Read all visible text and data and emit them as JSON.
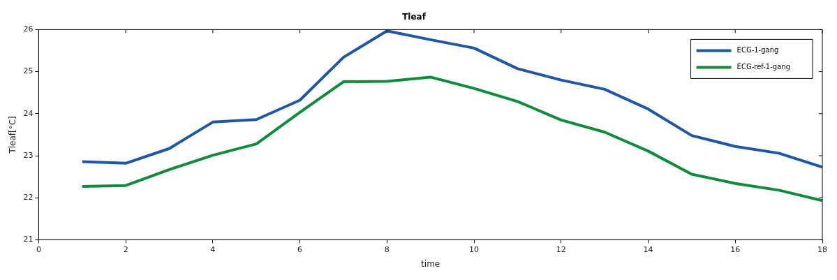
{
  "chart_data": {
    "type": "line",
    "title": "Tleaf",
    "xlabel": "time",
    "ylabel": "Tleaf[°C]",
    "x": [
      1,
      2,
      3,
      4,
      5,
      6,
      7,
      8,
      9,
      10,
      11,
      12,
      13,
      14,
      15,
      16,
      17,
      18
    ],
    "series": [
      {
        "name": "ECG-1-gang",
        "color": "#1f56a5",
        "values": [
          22.86,
          22.82,
          23.17,
          23.8,
          23.86,
          24.32,
          25.34,
          25.97,
          25.76,
          25.56,
          25.07,
          24.8,
          24.58,
          24.11,
          23.48,
          23.22,
          23.06,
          22.73
        ]
      },
      {
        "name": "ECG-ref-1-gang",
        "color": "#108a3c",
        "values": [
          22.27,
          22.29,
          22.67,
          23.01,
          23.28,
          24.03,
          24.76,
          24.77,
          24.87,
          24.6,
          24.29,
          23.85,
          23.56,
          23.11,
          22.56,
          22.34,
          22.18,
          21.93
        ]
      }
    ],
    "xlim": [
      0,
      18
    ],
    "xticks": [
      0,
      2,
      4,
      6,
      8,
      10,
      12,
      14,
      16,
      18
    ],
    "ylim": [
      21,
      26
    ],
    "yticks": [
      21,
      22,
      23,
      24,
      25,
      26
    ],
    "grid": false,
    "legend": "top right",
    "marker": "none",
    "line_style": "solid"
  }
}
